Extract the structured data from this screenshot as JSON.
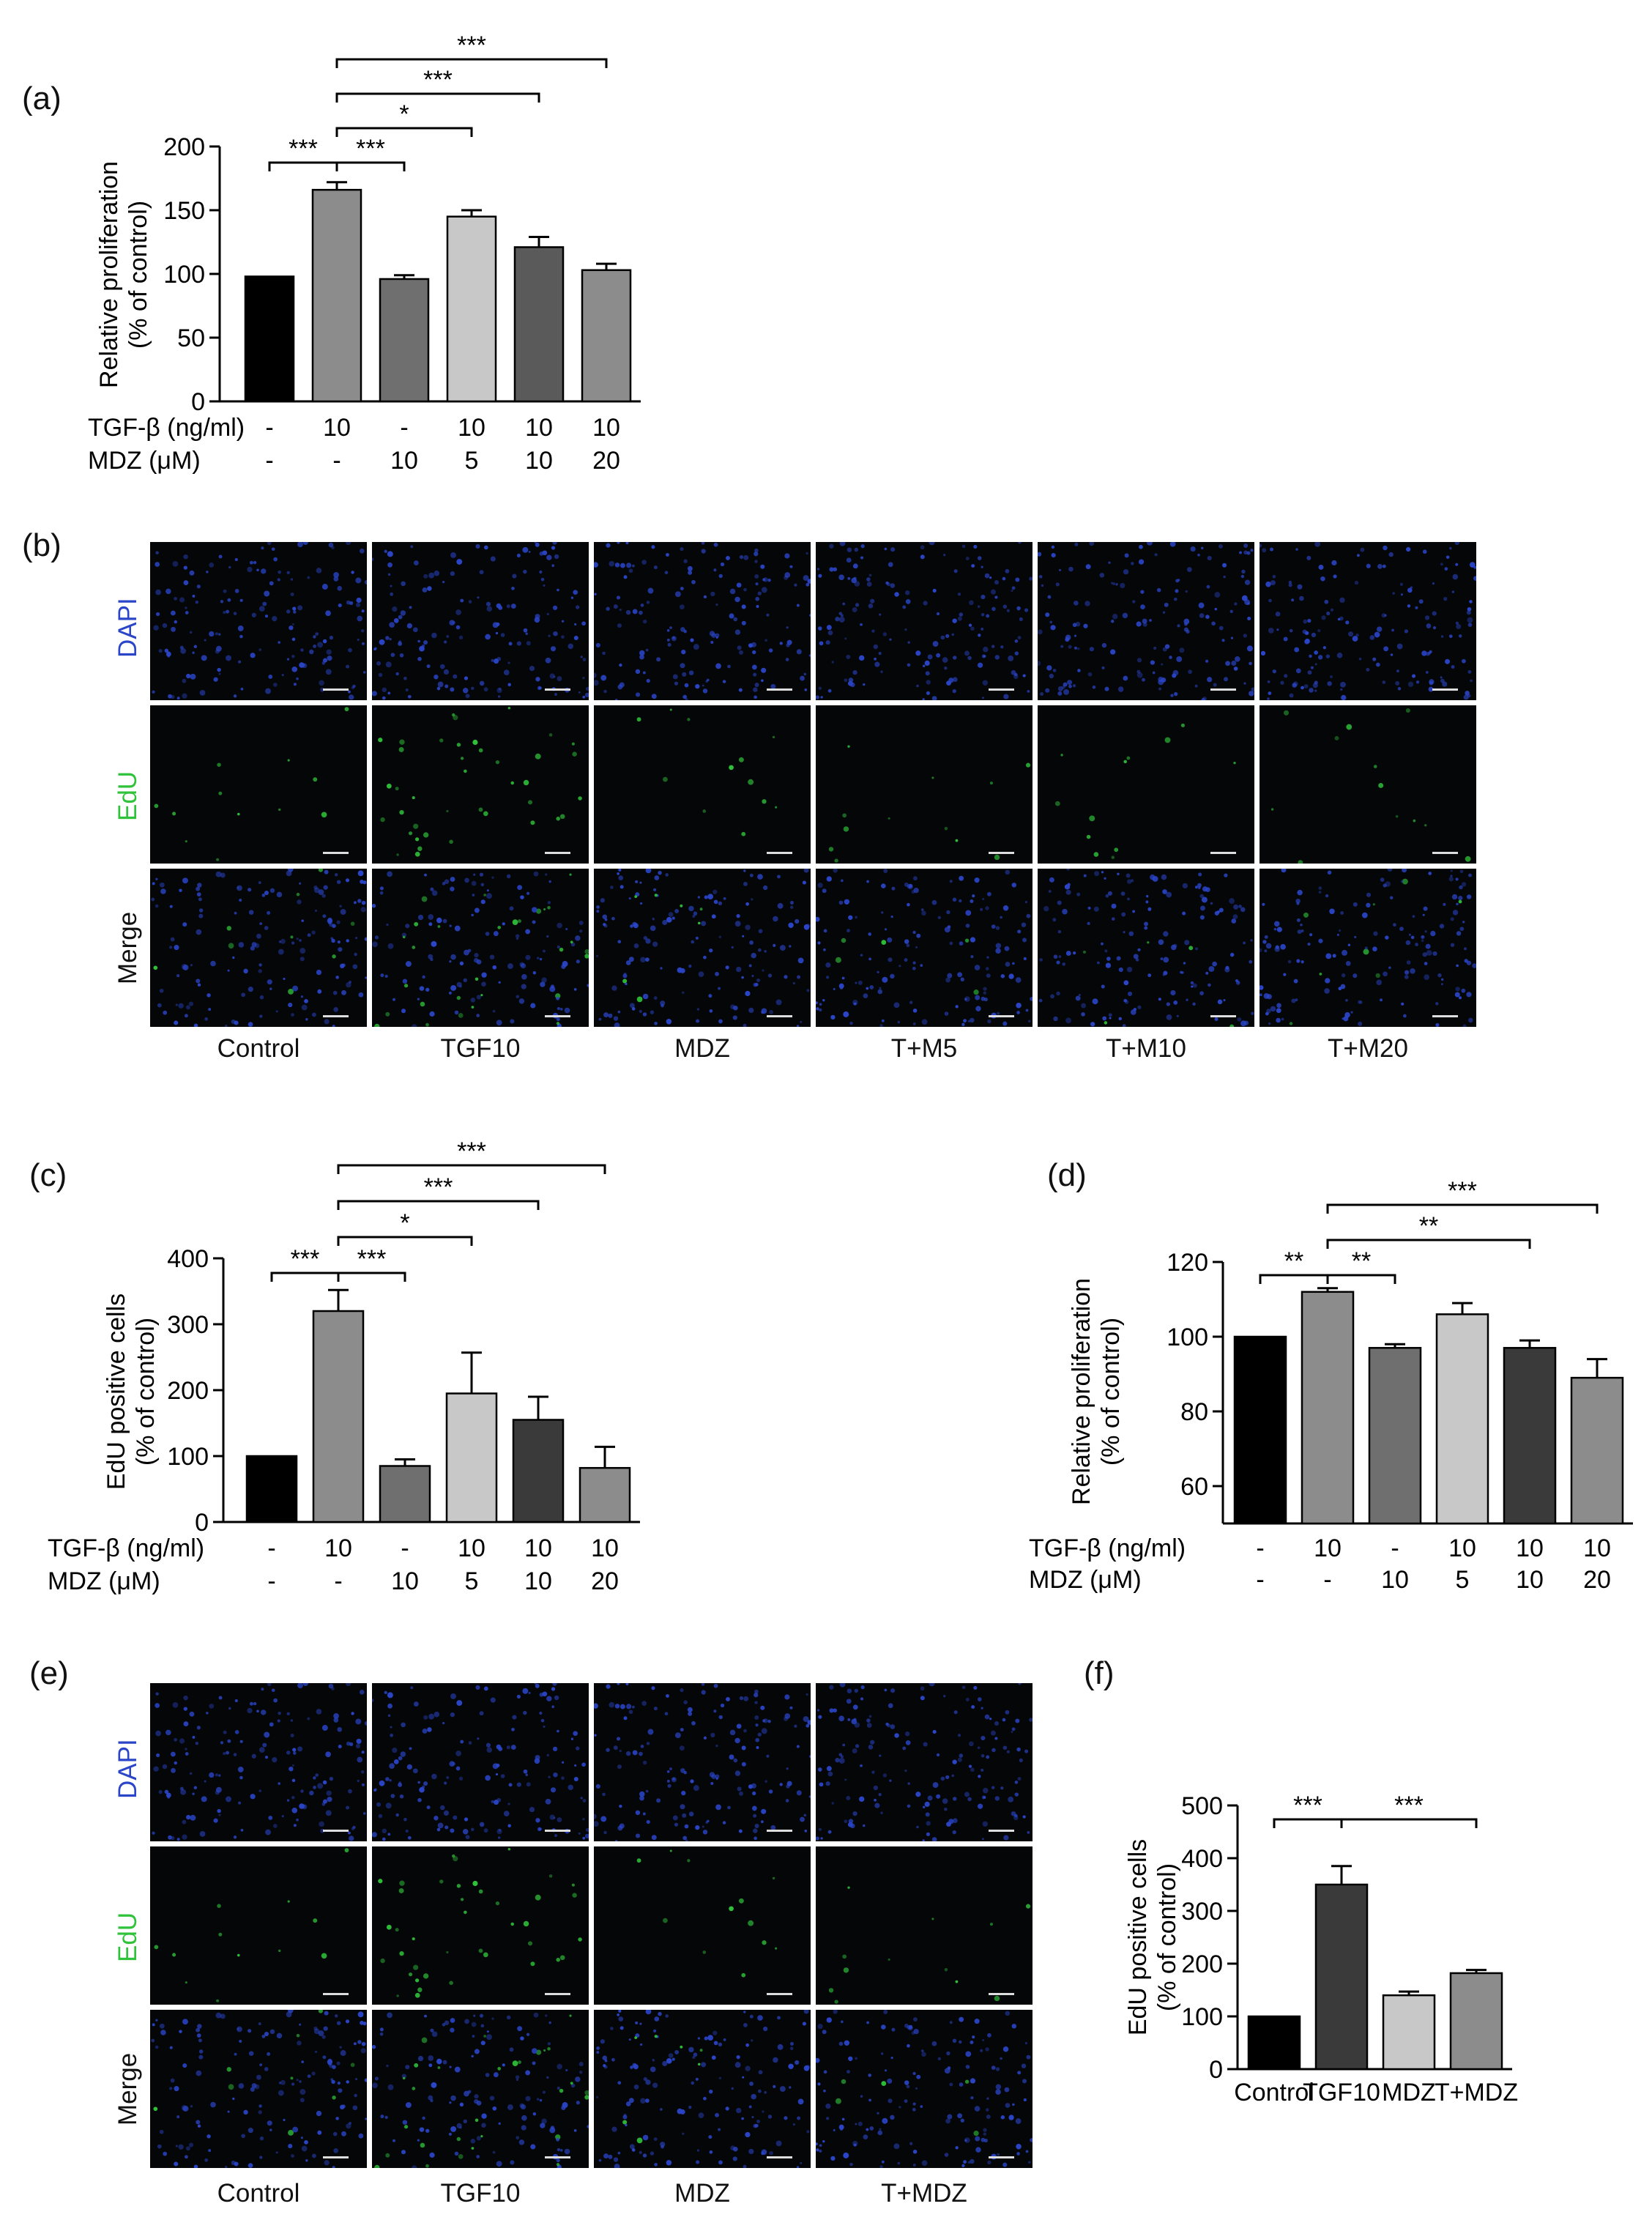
{
  "panel_labels": {
    "a": "(a)",
    "b": "(b)",
    "c": "(c)",
    "d": "(d)",
    "e": "(e)",
    "f": "(f)"
  },
  "colors": {
    "black": "#000000",
    "dark": "#3a3a3a",
    "mid": "#6f6f6f",
    "grey": "#8c8c8c",
    "light": "#c8c8c8",
    "dapi": "#2a45c8",
    "edu": "#2fc23a"
  },
  "chart_data": [
    {
      "id": "a",
      "type": "bar",
      "ylabel_lines": [
        "Relative proliferation",
        "(% of control)"
      ],
      "ylim": [
        0,
        200
      ],
      "yticks": [
        "0",
        "50",
        "100",
        "150",
        "200"
      ],
      "row_labels": [
        "TGF-β (ng/ml)",
        "MDZ (μM)"
      ],
      "rows": [
        [
          "-",
          "10",
          "-",
          "10",
          "10",
          "10"
        ],
        [
          "-",
          "-",
          "10",
          "5",
          "10",
          "20"
        ]
      ],
      "values": [
        98,
        166,
        96,
        145,
        121,
        103
      ],
      "errors": [
        0,
        6,
        3,
        5,
        8,
        5
      ],
      "bar_colors": [
        "#000000",
        "#8c8c8c",
        "#6f6f6f",
        "#c8c8c8",
        "#5a5a5a",
        "#8c8c8c"
      ],
      "brackets": [
        {
          "from": 0,
          "to": 1,
          "label": "***"
        },
        {
          "from": 1,
          "to": 2,
          "label": "***"
        },
        {
          "from": 1,
          "to": 3,
          "label": "*"
        },
        {
          "from": 1,
          "to": 4,
          "label": "***"
        },
        {
          "from": 1,
          "to": 5,
          "label": "***"
        }
      ]
    },
    {
      "id": "c",
      "type": "bar",
      "ylabel_lines": [
        "EdU positive cells",
        "(% of control)"
      ],
      "ylim": [
        0,
        400
      ],
      "yticks": [
        "0",
        "100",
        "200",
        "300",
        "400"
      ],
      "row_labels": [
        "TGF-β (ng/ml)",
        "MDZ (μM)"
      ],
      "rows": [
        [
          "-",
          "10",
          "-",
          "10",
          "10",
          "10"
        ],
        [
          "-",
          "-",
          "10",
          "5",
          "10",
          "20"
        ]
      ],
      "values": [
        100,
        320,
        85,
        195,
        155,
        82
      ],
      "errors": [
        0,
        32,
        10,
        62,
        35,
        32
      ],
      "bar_colors": [
        "#000000",
        "#8c8c8c",
        "#6f6f6f",
        "#c8c8c8",
        "#3a3a3a",
        "#8c8c8c"
      ],
      "brackets": [
        {
          "from": 0,
          "to": 1,
          "label": "***"
        },
        {
          "from": 1,
          "to": 2,
          "label": "***"
        },
        {
          "from": 1,
          "to": 3,
          "label": "*"
        },
        {
          "from": 1,
          "to": 4,
          "label": "***"
        },
        {
          "from": 1,
          "to": 5,
          "label": "***"
        }
      ]
    },
    {
      "id": "d",
      "type": "bar",
      "ylabel_lines": [
        "Relative proliferation",
        "(% of control)"
      ],
      "ylim": [
        50,
        120
      ],
      "yticks": [
        "60",
        "80",
        "100",
        "120"
      ],
      "row_labels": [
        "TGF-β (ng/ml)",
        "MDZ (μM)"
      ],
      "rows": [
        [
          "-",
          "10",
          "-",
          "10",
          "10",
          "10"
        ],
        [
          "-",
          "-",
          "10",
          "5",
          "10",
          "20"
        ]
      ],
      "values": [
        100,
        112,
        97,
        106,
        97,
        89
      ],
      "errors": [
        0,
        1,
        1,
        3,
        2,
        5
      ],
      "bar_colors": [
        "#000000",
        "#8c8c8c",
        "#6f6f6f",
        "#c8c8c8",
        "#3a3a3a",
        "#8c8c8c"
      ],
      "brackets": [
        {
          "from": 0,
          "to": 1,
          "label": "**"
        },
        {
          "from": 1,
          "to": 2,
          "label": "**"
        },
        {
          "from": 1,
          "to": 4,
          "label": "**"
        },
        {
          "from": 1,
          "to": 5,
          "label": "***"
        }
      ]
    },
    {
      "id": "f",
      "type": "bar",
      "ylabel_lines": [
        "EdU positive cells",
        "(% of control)"
      ],
      "ylim": [
        0,
        500
      ],
      "yticks": [
        "0",
        "100",
        "200",
        "300",
        "400",
        "500"
      ],
      "categories": [
        "Control",
        "TGF10",
        "MDZ",
        "T+MDZ"
      ],
      "values": [
        100,
        350,
        140,
        182
      ],
      "errors": [
        0,
        35,
        7,
        6
      ],
      "bar_colors": [
        "#000000",
        "#3a3a3a",
        "#c8c8c8",
        "#8c8c8c"
      ],
      "brackets": [
        {
          "from": 0,
          "to": 1,
          "label": "***"
        },
        {
          "from": 1,
          "to": 3,
          "label": "***"
        }
      ]
    }
  ],
  "micrographs_b": {
    "row_labels": [
      "DAPI",
      "EdU",
      "Merge"
    ],
    "columns": [
      "Control",
      "TGF10",
      "MDZ",
      "T+M5",
      "T+M10",
      "T+M20"
    ]
  },
  "micrographs_e": {
    "row_labels": [
      "DAPI",
      "EdU",
      "Merge"
    ],
    "columns": [
      "Control",
      "TGF10",
      "MDZ",
      "T+MDZ"
    ]
  }
}
